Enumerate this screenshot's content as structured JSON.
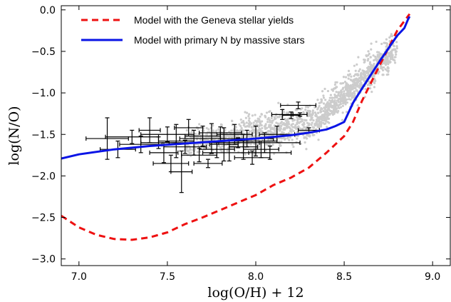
{
  "chart_data": {
    "type": "line",
    "xlabel": "log(O/H) + 12",
    "ylabel": "log(N/O)",
    "xlim": [
      6.9,
      9.1
    ],
    "ylim": [
      -3.08,
      0.05
    ],
    "grid": false,
    "legend_placement": "top-left",
    "x_ticks": [
      7.0,
      7.5,
      8.0,
      8.5,
      9.0
    ],
    "x_tick_labels": [
      "7.0",
      "7.5",
      "8.0",
      "8.5",
      "9.0"
    ],
    "y_ticks": [
      0.0,
      -0.5,
      -1.0,
      -1.5,
      -2.0,
      -2.5,
      -3.0
    ],
    "y_tick_labels": [
      "0.0",
      "−0.5",
      "−1.0",
      "−1.5",
      "−2.0",
      "−2.5",
      "−3.0"
    ],
    "series": [
      {
        "name": "Model with the Geneva stellar yields",
        "style": "dashed",
        "color": "#ee1111",
        "x": [
          6.9,
          7.0,
          7.1,
          7.2,
          7.3,
          7.4,
          7.5,
          7.6,
          7.7,
          7.8,
          7.9,
          8.0,
          8.1,
          8.2,
          8.3,
          8.4,
          8.5,
          8.55,
          8.6,
          8.7,
          8.8,
          8.87
        ],
        "y": [
          -2.48,
          -2.62,
          -2.71,
          -2.76,
          -2.77,
          -2.74,
          -2.68,
          -2.58,
          -2.5,
          -2.41,
          -2.32,
          -2.23,
          -2.11,
          -2.02,
          -1.9,
          -1.72,
          -1.52,
          -1.35,
          -1.1,
          -0.67,
          -0.25,
          -0.05
        ]
      },
      {
        "name": "Model with primary N by massive stars",
        "style": "solid",
        "color": "#0a14e6",
        "x": [
          6.9,
          7.0,
          7.2,
          7.4,
          7.6,
          7.8,
          8.0,
          8.2,
          8.3,
          8.4,
          8.45,
          8.5,
          8.55,
          8.6,
          8.7,
          8.8,
          8.84,
          8.86,
          8.87
        ],
        "y": [
          -1.79,
          -1.74,
          -1.68,
          -1.64,
          -1.61,
          -1.58,
          -1.55,
          -1.51,
          -1.48,
          -1.44,
          -1.4,
          -1.35,
          -1.12,
          -0.95,
          -0.62,
          -0.31,
          -0.22,
          -0.12,
          -0.08
        ]
      }
    ],
    "scatter_note_color": "#cccccc",
    "observations": [
      {
        "x": 7.16,
        "y": -1.55,
        "xerr": 0.12,
        "yerr": 0.25
      },
      {
        "x": 7.22,
        "y": -1.68,
        "xerr": 0.1,
        "yerr": 0.1
      },
      {
        "x": 7.3,
        "y": -1.53,
        "xerr": 0.15,
        "yerr": 0.08
      },
      {
        "x": 7.35,
        "y": -1.62,
        "xerr": 0.12,
        "yerr": 0.1
      },
      {
        "x": 7.4,
        "y": -1.45,
        "xerr": 0.06,
        "yerr": 0.15
      },
      {
        "x": 7.45,
        "y": -1.6,
        "xerr": 0.1,
        "yerr": 0.07
      },
      {
        "x": 7.48,
        "y": -1.72,
        "xerr": 0.08,
        "yerr": 0.12
      },
      {
        "x": 7.5,
        "y": -1.5,
        "xerr": 0.15,
        "yerr": 0.09
      },
      {
        "x": 7.52,
        "y": -1.85,
        "xerr": 0.1,
        "yerr": 0.1
      },
      {
        "x": 7.55,
        "y": -1.58,
        "xerr": 0.1,
        "yerr": 0.2
      },
      {
        "x": 7.58,
        "y": -1.95,
        "xerr": 0.06,
        "yerr": 0.25
      },
      {
        "x": 7.6,
        "y": -1.65,
        "xerr": 0.12,
        "yerr": 0.08
      },
      {
        "x": 7.62,
        "y": -1.42,
        "xerr": 0.08,
        "yerr": 0.1
      },
      {
        "x": 7.65,
        "y": -1.6,
        "xerr": 0.14,
        "yerr": 0.15
      },
      {
        "x": 7.68,
        "y": -1.75,
        "xerr": 0.1,
        "yerr": 0.08
      },
      {
        "x": 7.7,
        "y": -1.52,
        "xerr": 0.1,
        "yerr": 0.12
      },
      {
        "x": 7.73,
        "y": -1.85,
        "xerr": 0.08,
        "yerr": 0.05
      },
      {
        "x": 7.75,
        "y": -1.55,
        "xerr": 0.18,
        "yerr": 0.18
      },
      {
        "x": 7.78,
        "y": -1.68,
        "xerr": 0.1,
        "yerr": 0.1
      },
      {
        "x": 7.8,
        "y": -1.48,
        "xerr": 0.12,
        "yerr": 0.07
      },
      {
        "x": 7.82,
        "y": -1.62,
        "xerr": 0.08,
        "yerr": 0.2
      },
      {
        "x": 7.85,
        "y": -1.72,
        "xerr": 0.15,
        "yerr": 0.1
      },
      {
        "x": 7.88,
        "y": -1.5,
        "xerr": 0.1,
        "yerr": 0.12
      },
      {
        "x": 7.9,
        "y": -1.6,
        "xerr": 0.12,
        "yerr": 0.06
      },
      {
        "x": 7.93,
        "y": -1.65,
        "xerr": 0.08,
        "yerr": 0.15
      },
      {
        "x": 7.95,
        "y": -1.55,
        "xerr": 0.15,
        "yerr": 0.1
      },
      {
        "x": 7.98,
        "y": -1.78,
        "xerr": 0.1,
        "yerr": 0.08
      },
      {
        "x": 8.0,
        "y": -1.58,
        "xerr": 0.12,
        "yerr": 0.18
      },
      {
        "x": 8.03,
        "y": -1.68,
        "xerr": 0.1,
        "yerr": 0.1
      },
      {
        "x": 8.05,
        "y": -1.6,
        "xerr": 0.2,
        "yerr": 0.12
      },
      {
        "x": 8.08,
        "y": -1.72,
        "xerr": 0.12,
        "yerr": 0.08
      },
      {
        "x": 8.12,
        "y": -1.5,
        "xerr": 0.1,
        "yerr": 0.1
      },
      {
        "x": 8.15,
        "y": -1.26,
        "xerr": 0.06,
        "yerr": 0.06
      },
      {
        "x": 8.2,
        "y": -1.27,
        "xerr": 0.05,
        "yerr": 0.04
      },
      {
        "x": 8.25,
        "y": -1.26,
        "xerr": 0.04,
        "yerr": 0.02
      },
      {
        "x": 8.24,
        "y": -1.15,
        "xerr": 0.1,
        "yerr": 0.04
      },
      {
        "x": 8.3,
        "y": -1.45,
        "xerr": 0.06,
        "yerr": 0.03
      }
    ]
  },
  "legend": {
    "series_1_label": "Model with the Geneva stellar yields",
    "series_2_label": "Model with primary N by massive stars"
  }
}
